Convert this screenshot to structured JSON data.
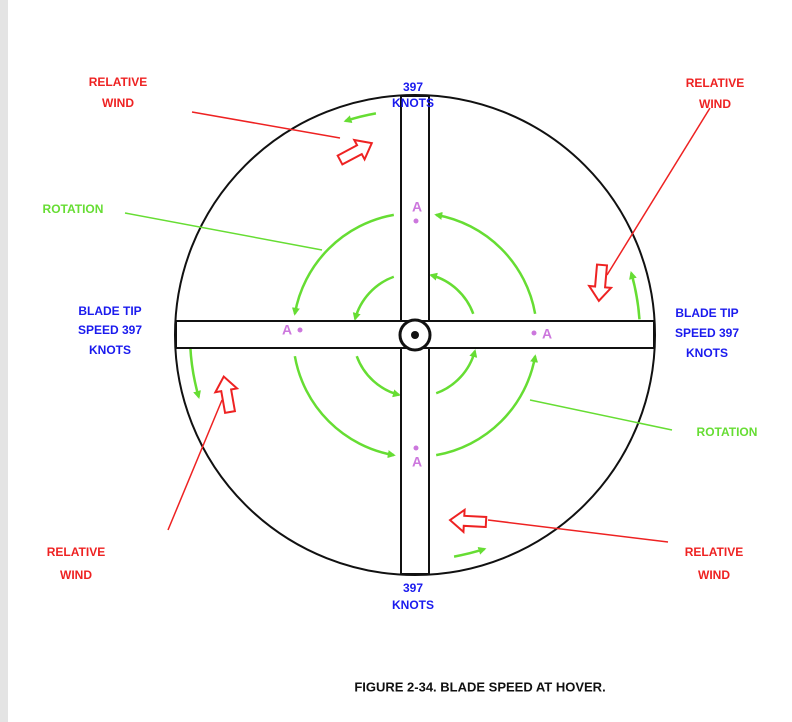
{
  "labels": {
    "top_speed": [
      "397",
      "KNOTS"
    ],
    "bottom_speed": [
      "397",
      "KNOTS"
    ],
    "left_speed": [
      "BLADE TIP",
      "SPEED 397",
      "KNOTS"
    ],
    "right_speed": [
      "BLADE TIP",
      "SPEED 397",
      "KNOTS"
    ],
    "wind_top_left": [
      "RELATIVE",
      "WIND"
    ],
    "wind_top_right": [
      "RELATIVE",
      "WIND"
    ],
    "wind_bottom_left": [
      "RELATIVE",
      "WIND"
    ],
    "wind_bottom_right": [
      "RELATIVE",
      "WIND"
    ],
    "rotation_left": "ROTATION",
    "rotation_right": "ROTATION",
    "point_top": "A",
    "point_left": "A",
    "point_right": "A",
    "point_bottom": "A"
  },
  "caption": "FIGURE 2-34. BLADE SPEED AT HOVER."
}
